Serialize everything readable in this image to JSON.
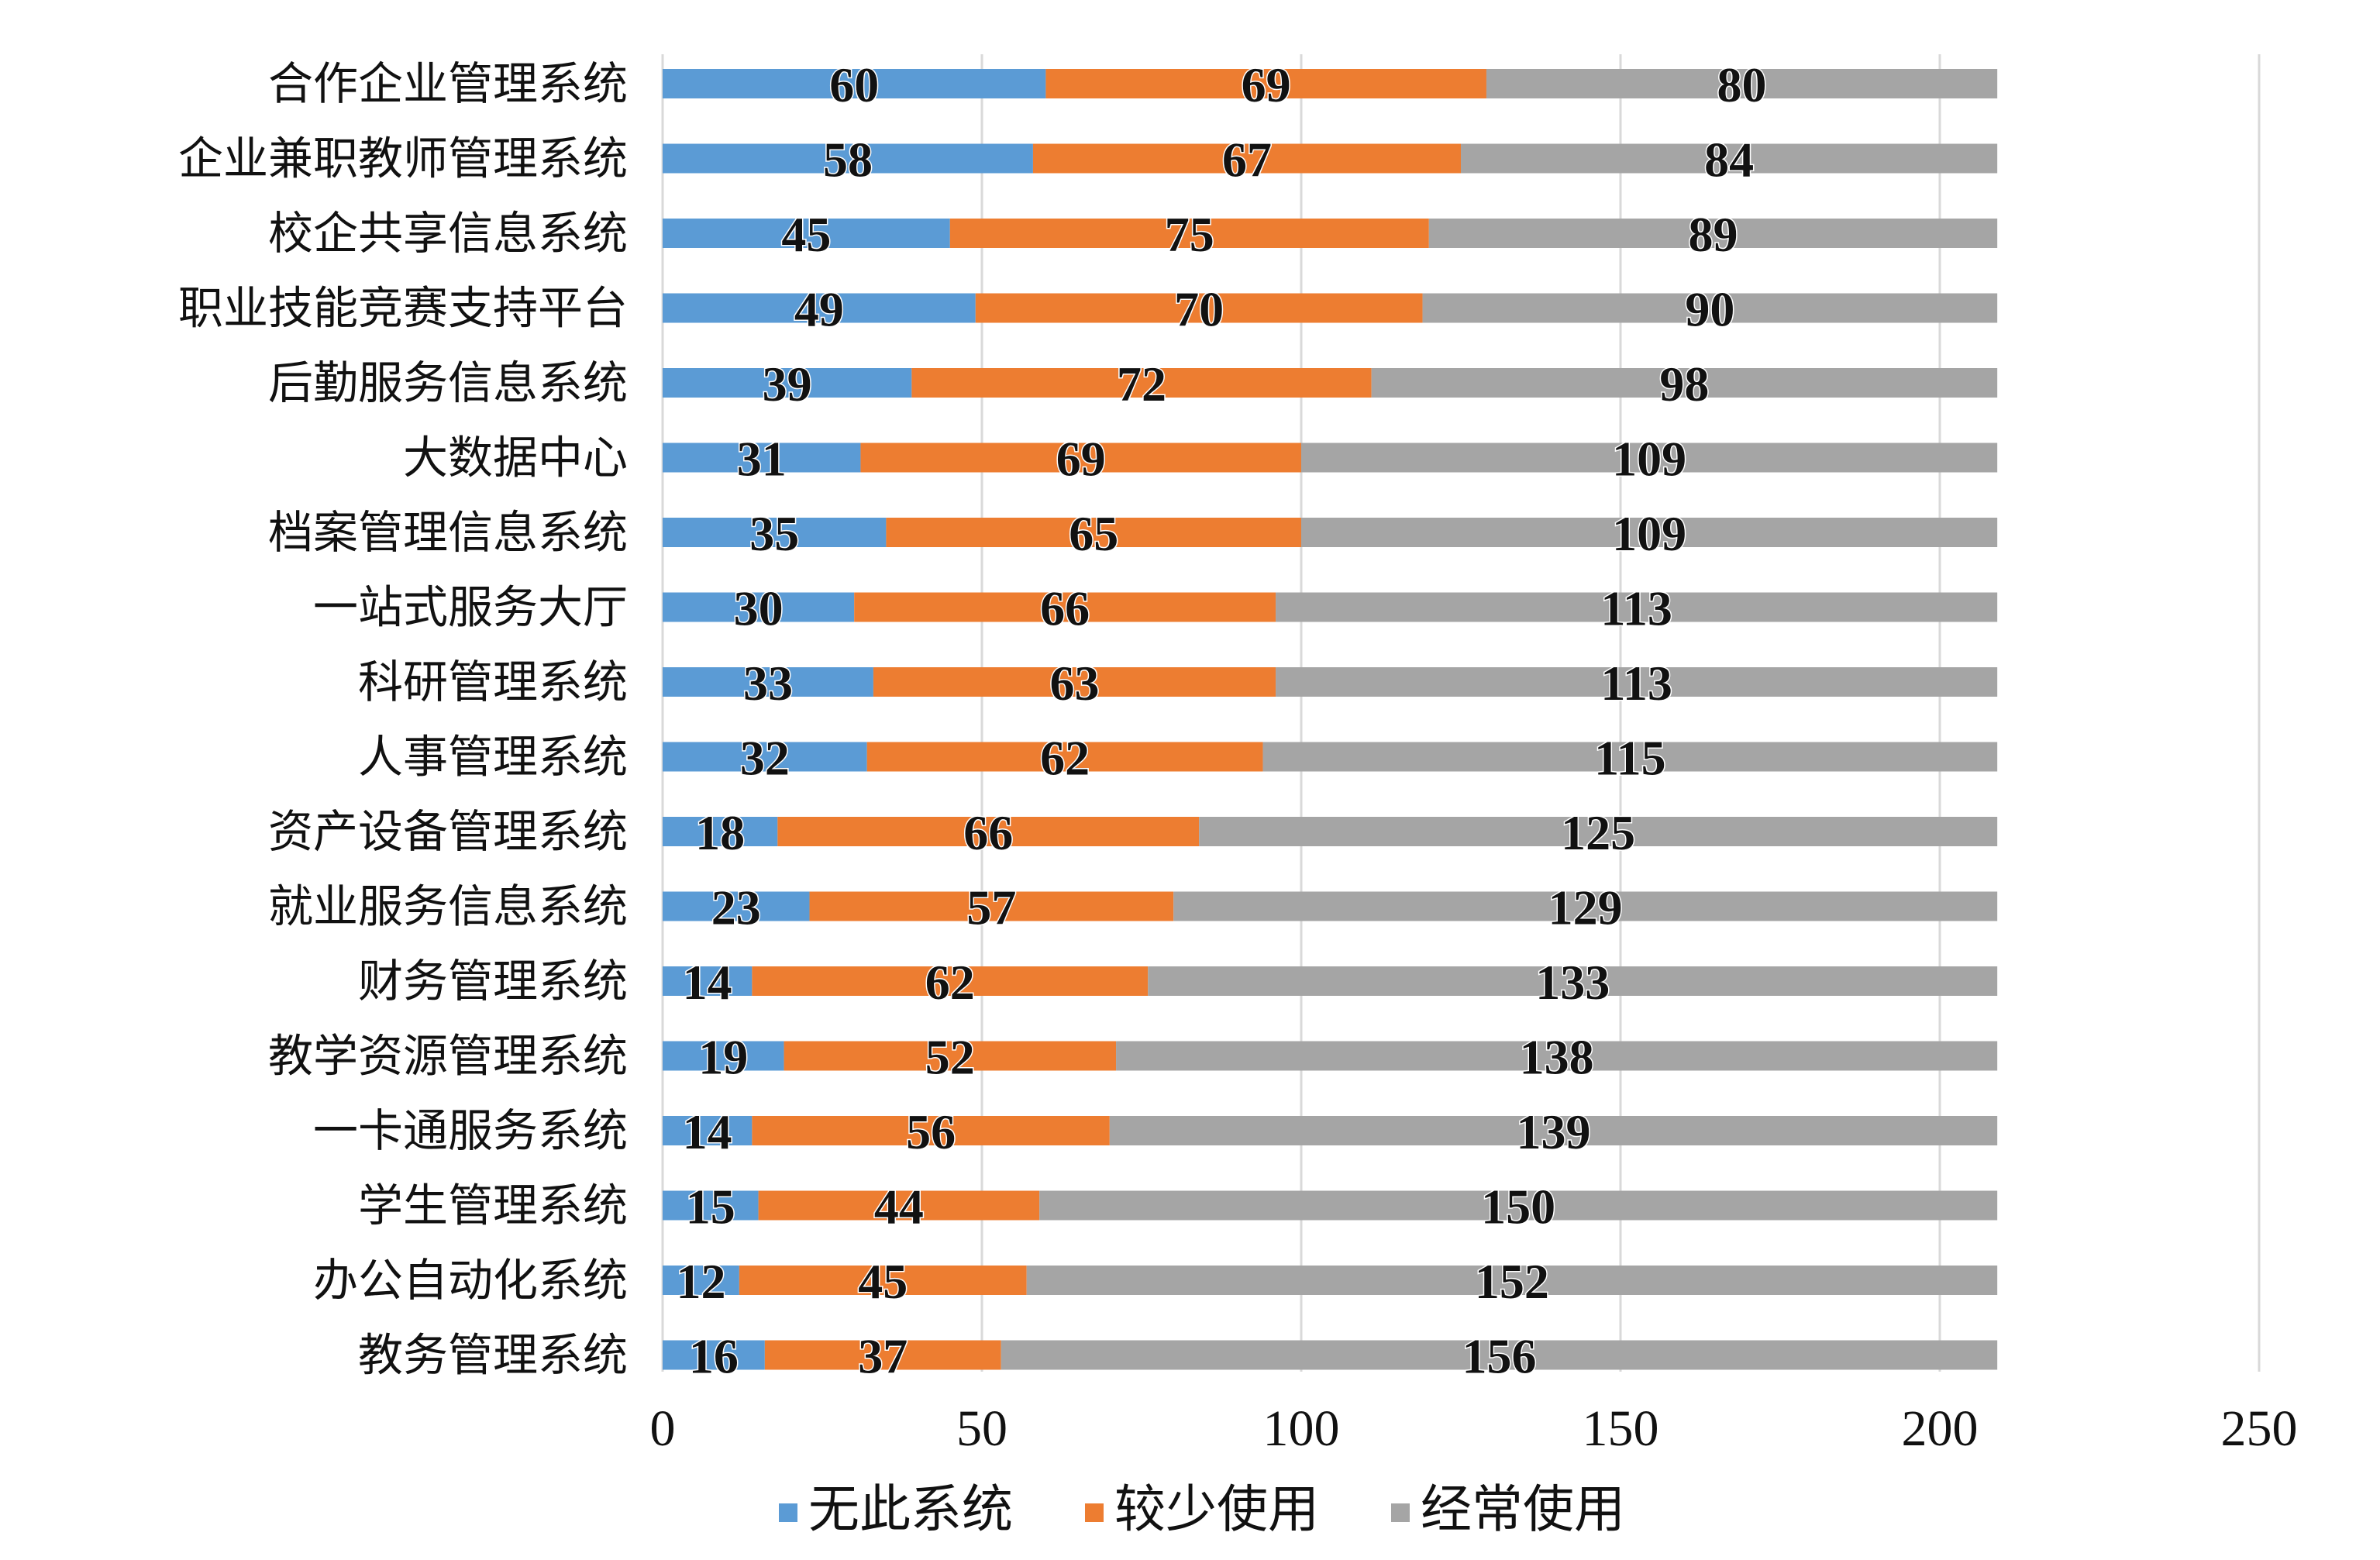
{
  "chart_data": {
    "type": "bar",
    "orientation": "horizontal",
    "stacked": true,
    "categories": [
      "合作企业管理系统",
      "企业兼职教师管理系统",
      "校企共享信息系统",
      "职业技能竞赛支持平台",
      "后勤服务信息系统",
      "大数据中心",
      "档案管理信息系统",
      "一站式服务大厅",
      "科研管理系统",
      "人事管理系统",
      "资产设备管理系统",
      "就业服务信息系统",
      "财务管理系统",
      "教学资源管理系统",
      "一卡通服务系统",
      "学生管理系统",
      "办公自动化系统",
      "教务管理系统"
    ],
    "series": [
      {
        "name": "无此系统",
        "color": "#5b9bd5",
        "values": [
          60,
          58,
          45,
          49,
          39,
          31,
          35,
          30,
          33,
          32,
          18,
          23,
          14,
          19,
          14,
          15,
          12,
          16
        ]
      },
      {
        "name": "较少使用",
        "color": "#ed7d31",
        "values": [
          69,
          67,
          75,
          70,
          72,
          69,
          65,
          66,
          63,
          62,
          66,
          57,
          62,
          52,
          56,
          44,
          45,
          37
        ]
      },
      {
        "name": "经常使用",
        "color": "#a5a5a5",
        "values": [
          80,
          84,
          89,
          90,
          98,
          109,
          109,
          113,
          113,
          115,
          125,
          129,
          133,
          138,
          139,
          150,
          152,
          156
        ]
      }
    ],
    "xlim": [
      0,
      250
    ],
    "xticks": [
      "0",
      "50",
      "100",
      "150",
      "200",
      "250"
    ],
    "grid": true,
    "legend_position": "bottom",
    "title": "",
    "xlabel": "",
    "ylabel": ""
  }
}
